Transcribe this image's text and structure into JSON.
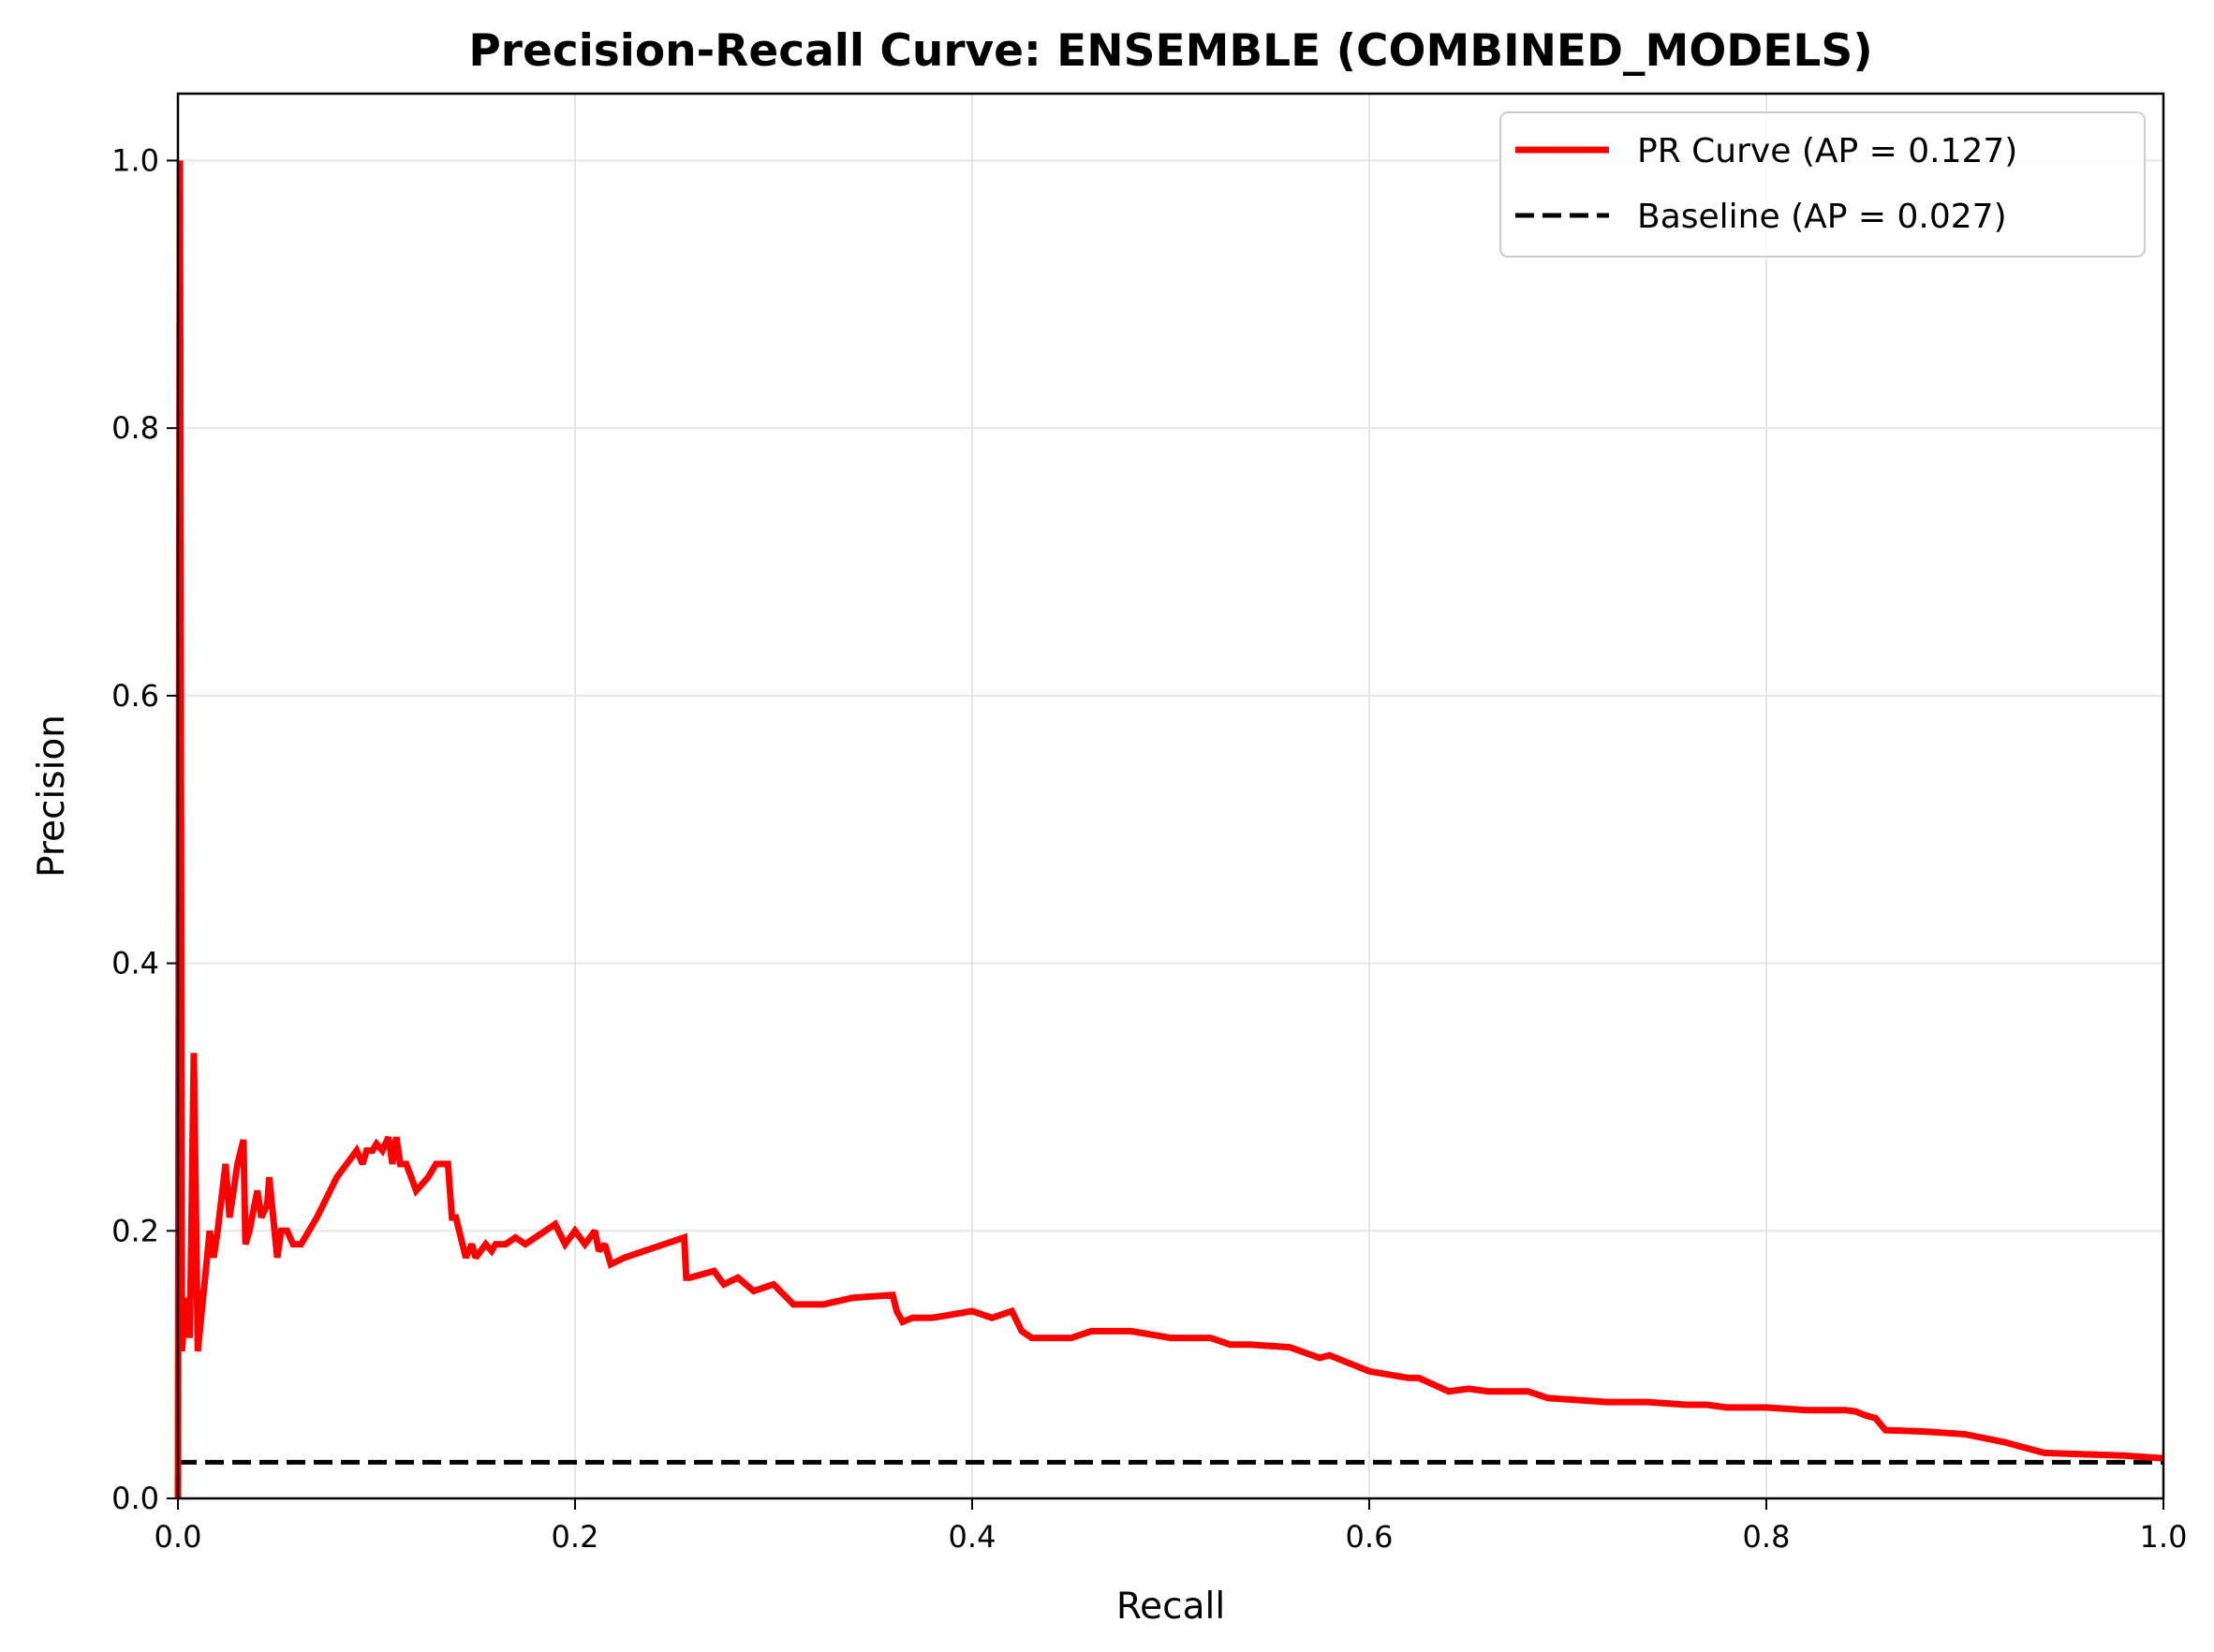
{
  "chart_data": {
    "type": "line",
    "title": "Precision-Recall Curve: ENSEMBLE (COMBINED_MODELS)",
    "xlabel": "Recall",
    "ylabel": "Precision",
    "xlim": [
      0.0,
      1.0
    ],
    "ylim": [
      0.0,
      1.05
    ],
    "xticks": [
      "0.0",
      "0.2",
      "0.4",
      "0.6",
      "0.8",
      "1.0"
    ],
    "yticks": [
      "0.0",
      "0.2",
      "0.4",
      "0.6",
      "0.8",
      "1.0"
    ],
    "grid": true,
    "legend_position": "top-right",
    "series": [
      {
        "name": "PR Curve (AP = 0.127)",
        "color": "#ff0000",
        "style": "solid",
        "x": [
          0.0,
          0.001,
          0.002,
          0.004,
          0.006,
          0.008,
          0.01,
          0.012,
          0.016,
          0.018,
          0.02,
          0.024,
          0.026,
          0.027,
          0.03,
          0.033,
          0.034,
          0.036,
          0.04,
          0.042,
          0.045,
          0.046,
          0.05,
          0.052,
          0.055,
          0.058,
          0.062,
          0.07,
          0.08,
          0.085,
          0.09,
          0.093,
          0.095,
          0.098,
          0.1,
          0.103,
          0.106,
          0.108,
          0.11,
          0.112,
          0.115,
          0.12,
          0.126,
          0.13,
          0.136,
          0.138,
          0.14,
          0.145,
          0.148,
          0.15,
          0.155,
          0.158,
          0.16,
          0.165,
          0.17,
          0.175,
          0.18,
          0.185,
          0.19,
          0.195,
          0.2,
          0.205,
          0.21,
          0.212,
          0.215,
          0.218,
          0.225,
          0.235,
          0.245,
          0.255,
          0.256,
          0.258,
          0.27,
          0.275,
          0.282,
          0.29,
          0.3,
          0.31,
          0.316,
          0.325,
          0.34,
          0.36,
          0.362,
          0.365,
          0.37,
          0.38,
          0.4,
          0.41,
          0.42,
          0.425,
          0.43,
          0.44,
          0.45,
          0.46,
          0.47,
          0.48,
          0.5,
          0.52,
          0.53,
          0.54,
          0.56,
          0.575,
          0.58,
          0.6,
          0.62,
          0.625,
          0.64,
          0.65,
          0.66,
          0.68,
          0.69,
          0.7,
          0.72,
          0.74,
          0.76,
          0.77,
          0.78,
          0.8,
          0.82,
          0.84,
          0.845,
          0.85,
          0.855,
          0.86,
          0.88,
          0.9,
          0.92,
          0.94,
          0.96,
          0.98,
          1.0
        ],
        "y": [
          0.0,
          1.0,
          0.11,
          0.15,
          0.12,
          0.333,
          0.11,
          0.14,
          0.2,
          0.18,
          0.2,
          0.25,
          0.21,
          0.22,
          0.25,
          0.268,
          0.19,
          0.2,
          0.23,
          0.21,
          0.22,
          0.24,
          0.18,
          0.2,
          0.2,
          0.19,
          0.19,
          0.21,
          0.24,
          0.25,
          0.26,
          0.25,
          0.26,
          0.26,
          0.265,
          0.26,
          0.27,
          0.25,
          0.27,
          0.25,
          0.25,
          0.23,
          0.24,
          0.25,
          0.25,
          0.21,
          0.21,
          0.18,
          0.19,
          0.18,
          0.19,
          0.185,
          0.19,
          0.19,
          0.195,
          0.19,
          0.195,
          0.2,
          0.205,
          0.19,
          0.2,
          0.19,
          0.2,
          0.185,
          0.19,
          0.175,
          0.18,
          0.185,
          0.19,
          0.195,
          0.165,
          0.165,
          0.17,
          0.16,
          0.165,
          0.155,
          0.16,
          0.145,
          0.145,
          0.145,
          0.15,
          0.152,
          0.14,
          0.132,
          0.135,
          0.135,
          0.14,
          0.135,
          0.14,
          0.125,
          0.12,
          0.12,
          0.12,
          0.125,
          0.125,
          0.125,
          0.12,
          0.12,
          0.115,
          0.115,
          0.113,
          0.105,
          0.107,
          0.095,
          0.09,
          0.09,
          0.08,
          0.082,
          0.08,
          0.08,
          0.075,
          0.074,
          0.072,
          0.072,
          0.07,
          0.07,
          0.068,
          0.068,
          0.066,
          0.066,
          0.065,
          0.062,
          0.06,
          0.051,
          0.05,
          0.048,
          0.042,
          0.034,
          0.033,
          0.032,
          0.03
        ]
      },
      {
        "name": "Baseline (AP = 0.027)",
        "color": "#000000",
        "style": "dashed",
        "x": [
          0.0,
          1.0
        ],
        "y": [
          0.027,
          0.027
        ]
      }
    ]
  }
}
